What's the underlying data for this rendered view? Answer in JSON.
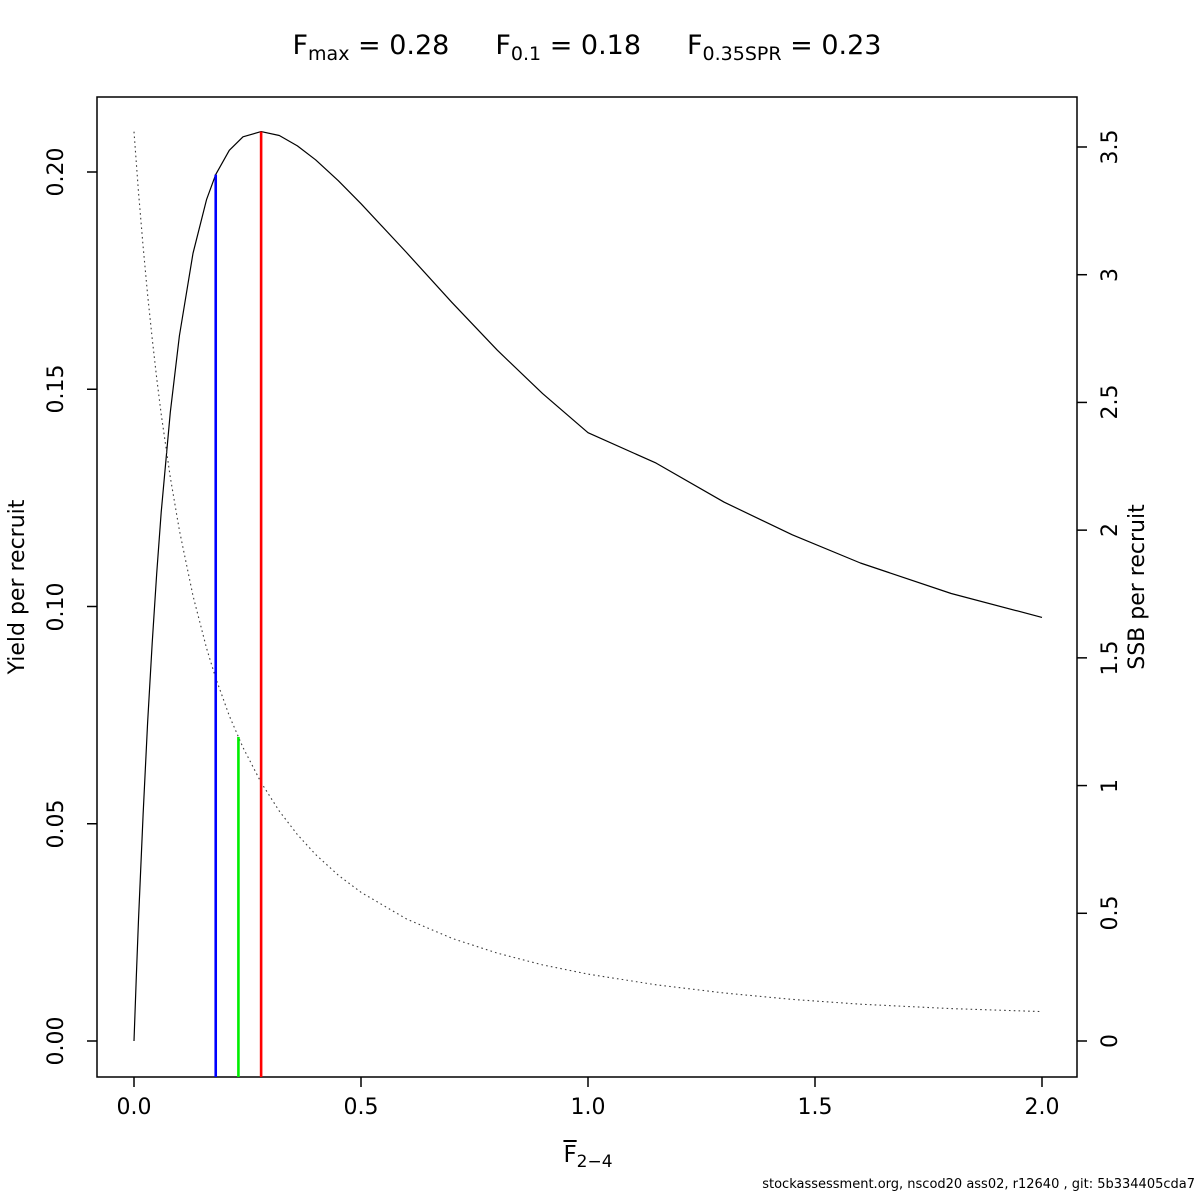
{
  "title": {
    "terms": [
      {
        "base": "F",
        "sub": "max",
        "eq": " = ",
        "value": "0.28"
      },
      {
        "base": "F",
        "sub": "0.1",
        "eq": " = ",
        "value": "0.18"
      },
      {
        "base": "F",
        "sub": "0.35SPR",
        "eq": " = ",
        "value": "0.23"
      }
    ]
  },
  "footer": "stockassessment.org, nscod20 ass02, r12640 , git: 5b334405cda7",
  "chart_data": {
    "type": "line",
    "title": "Fmax = 0.28  F0.1 = 0.18  F0.35SPR = 0.23",
    "x_axis": {
      "label_base": "F",
      "label_overbar": true,
      "label_sub": "2−4",
      "ticks": [
        0.0,
        0.5,
        1.0,
        1.5,
        2.0
      ],
      "tick_labels": [
        "0.0",
        "0.5",
        "1.0",
        "1.5",
        "2.0"
      ],
      "range": [
        -0.082,
        2.077
      ]
    },
    "y_left": {
      "label": "Yield per recruit",
      "ticks": [
        0.0,
        0.05,
        0.1,
        0.15,
        0.2
      ],
      "tick_labels": [
        "0.00",
        "0.05",
        "0.10",
        "0.15",
        "0.20"
      ],
      "range": [
        -0.0083,
        0.2172
      ]
    },
    "y_right": {
      "label": "SSB per recruit",
      "ticks": [
        0,
        0.5,
        1,
        1.5,
        2,
        2.5,
        3,
        3.5
      ],
      "tick_labels": [
        "0",
        "0.5",
        "1",
        "1.5",
        "2",
        "2.5",
        "3",
        "3.5"
      ],
      "range": [
        -0.034,
        3.66
      ]
    },
    "grid": false,
    "legend": "none",
    "series": [
      {
        "name": "yield-per-recruit",
        "axis": "left",
        "style": "solid",
        "color": "#000000",
        "x": [
          0,
          0.005,
          0.01,
          0.02,
          0.03,
          0.04,
          0.05,
          0.06,
          0.08,
          0.1,
          0.13,
          0.16,
          0.18,
          0.21,
          0.24,
          0.28,
          0.32,
          0.36,
          0.4,
          0.45,
          0.5,
          0.6,
          0.7,
          0.8,
          0.9,
          1.0,
          1.15,
          1.3,
          1.45,
          1.6,
          1.8,
          2.0
        ],
        "y": [
          0,
          0.0147,
          0.0279,
          0.0521,
          0.0732,
          0.0916,
          0.1076,
          0.1217,
          0.1447,
          0.1623,
          0.1813,
          0.1937,
          0.1994,
          0.205,
          0.2081,
          0.2093,
          0.2084,
          0.206,
          0.2028,
          0.198,
          0.1927,
          0.1815,
          0.17,
          0.159,
          0.149,
          0.14,
          0.133,
          0.124,
          0.1165,
          0.11,
          0.103,
          0.0975
        ]
      },
      {
        "name": "ssb-per-recruit",
        "axis": "right",
        "style": "dotted",
        "color": "#3c3c3c",
        "x": [
          0,
          0.01,
          0.02,
          0.03,
          0.04,
          0.05,
          0.06,
          0.08,
          0.1,
          0.13,
          0.16,
          0.18,
          0.21,
          0.24,
          0.28,
          0.32,
          0.36,
          0.4,
          0.45,
          0.5,
          0.6,
          0.7,
          0.8,
          0.9,
          1.0,
          1.15,
          1.3,
          1.45,
          1.6,
          1.8,
          2.0
        ],
        "y": [
          3.56,
          3.323,
          3.111,
          2.922,
          2.75,
          2.595,
          2.454,
          2.207,
          1.999,
          1.743,
          1.537,
          1.421,
          1.273,
          1.149,
          1.012,
          0.9,
          0.808,
          0.73,
          0.649,
          0.582,
          0.478,
          0.402,
          0.344,
          0.298,
          0.262,
          0.22,
          0.188,
          0.163,
          0.144,
          0.127,
          0.115
        ]
      }
    ],
    "reference_lines": [
      {
        "name": "f01-line",
        "label": "F0.1",
        "x": 0.18,
        "top": 0.1994,
        "axis": "left",
        "color": "#0000ff"
      },
      {
        "name": "f035spr-line",
        "label": "F0.35SPR",
        "x": 0.23,
        "top": 1.19,
        "axis": "right",
        "color": "#00ee00"
      },
      {
        "name": "fmax-line",
        "label": "Fmax",
        "x": 0.28,
        "top": 0.2093,
        "axis": "left",
        "color": "#ff0000"
      }
    ]
  }
}
